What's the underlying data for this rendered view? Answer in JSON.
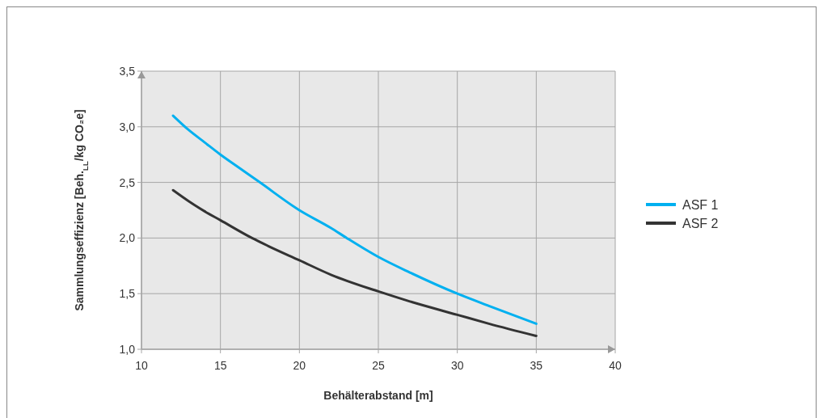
{
  "chart_data": {
    "type": "line",
    "xlabel": "Behälterabstand [m]",
    "ylabel": "Sammlungseffizienz [Beh.$_{LL}$/kg CO₂e]",
    "xlim": [
      10,
      40
    ],
    "xticks": [
      10,
      15,
      20,
      25,
      30,
      35,
      40
    ],
    "ylim": [
      1.0,
      3.5
    ],
    "yticks": [
      {
        "value": 1.0,
        "label": "1,0"
      },
      {
        "value": 1.5,
        "label": "1,5"
      },
      {
        "value": 2.0,
        "label": "2,0"
      },
      {
        "value": 2.5,
        "label": "2,5"
      },
      {
        "value": 3.0,
        "label": "3,0"
      },
      {
        "value": 3.5,
        "label": "3,5"
      }
    ],
    "grid": true,
    "legend": "right",
    "line_style": "solid",
    "marker": "none",
    "series": [
      {
        "name": "ASF 1",
        "color": "#00b0f0",
        "x": [
          12,
          13,
          14,
          15,
          16,
          17.5,
          20,
          22,
          23,
          25,
          27,
          30,
          32,
          35
        ],
        "values": [
          3.1,
          2.97,
          2.86,
          2.75,
          2.65,
          2.5,
          2.25,
          2.09,
          2.0,
          1.83,
          1.69,
          1.5,
          1.39,
          1.23
        ]
      },
      {
        "name": "ASF 2",
        "color": "#333333",
        "x": [
          12,
          13,
          14,
          15,
          17,
          18,
          20,
          22,
          25,
          27,
          30,
          32,
          35
        ],
        "values": [
          2.43,
          2.33,
          2.24,
          2.16,
          2.0,
          1.93,
          1.8,
          1.67,
          1.52,
          1.43,
          1.31,
          1.23,
          1.12
        ]
      }
    ]
  }
}
